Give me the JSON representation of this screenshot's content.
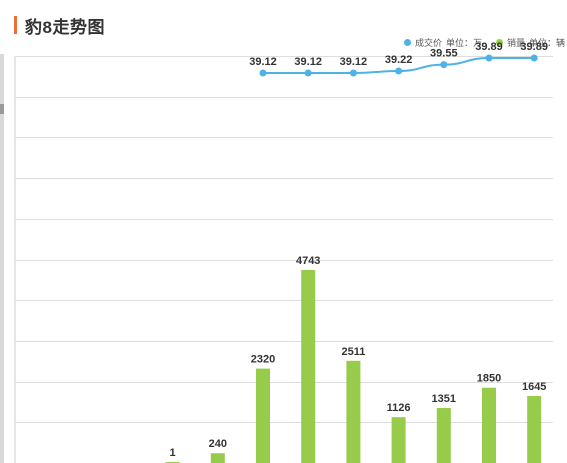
{
  "header": {
    "title": "豹8走势图"
  },
  "legend": {
    "price_label": "成交价",
    "price_unit": "单位：万",
    "volume_label": "销量",
    "volume_unit": "单位：辆"
  },
  "colors": {
    "accent": "#f26b3a",
    "price_line": "#4db3e6",
    "volume_bar": "#96cc4a",
    "grid": "#dddddd"
  },
  "chart_data": {
    "type": "bar",
    "grid": true,
    "legend_position": "top-right",
    "categories": [
      "",
      "",
      "",
      "",
      "",
      "",
      "",
      "",
      "",
      "",
      "",
      ""
    ],
    "series": [
      {
        "name": "销量",
        "type": "bar",
        "values": [
          null,
          null,
          null,
          1,
          240,
          2320,
          4743,
          2511,
          1126,
          1351,
          1850,
          1645
        ],
        "labels": [
          "",
          "",
          "",
          "1",
          "240",
          "2320",
          "4743",
          "2511",
          "1126",
          "1351",
          "1850",
          "1645"
        ]
      },
      {
        "name": "成交价",
        "type": "line",
        "values": [
          null,
          null,
          null,
          null,
          null,
          39.12,
          39.12,
          39.12,
          39.22,
          39.55,
          39.89,
          39.89
        ],
        "labels": [
          "",
          "",
          "",
          "",
          "",
          "39.12",
          "39.12",
          "39.12",
          "39.22",
          "39.55",
          "39.89",
          "39.89"
        ]
      }
    ],
    "ylim": [
      0,
      10000
    ]
  }
}
